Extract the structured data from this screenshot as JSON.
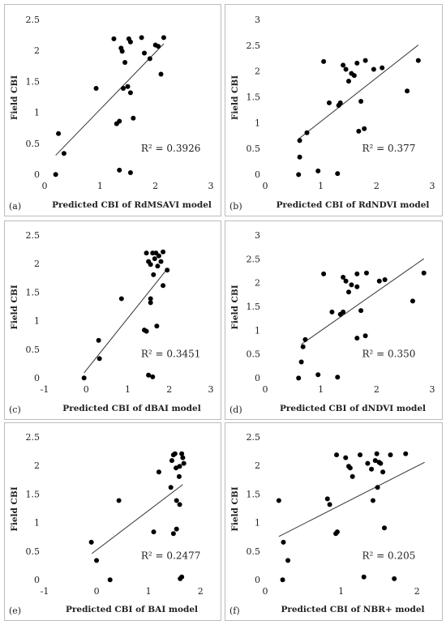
{
  "chart_data": [
    {
      "type": "scatter",
      "panel_label": "(a)",
      "x_label": "Predicted CBI of RdMSAVI model",
      "y_label": "Field CBI",
      "annotation": "R² = 0.3926",
      "color": "#000000",
      "x": [
        0.2,
        0.25,
        0.35,
        0.93,
        1.25,
        1.3,
        1.35,
        1.35,
        1.38,
        1.42,
        1.4,
        1.45,
        1.5,
        1.55,
        1.52,
        1.55,
        1.55,
        1.6,
        1.75,
        1.8,
        1.9,
        2.0,
        2.05,
        2.1,
        2.15
      ],
      "values": [
        0.01,
        0.67,
        0.35,
        1.4,
        2.2,
        0.83,
        0.08,
        0.87,
        2.05,
        1.4,
        2.0,
        1.82,
        1.43,
        2.15,
        2.2,
        1.33,
        0.04,
        0.92,
        2.22,
        1.97,
        1.88,
        2.1,
        2.08,
        1.63,
        2.22
      ],
      "trendline": {
        "x": [
          0.2,
          2.15
        ],
        "y": [
          0.32,
          2.12
        ]
      },
      "xlim": [
        0,
        3
      ],
      "ylim": [
        0,
        2.5
      ],
      "xticks": [
        0,
        1,
        2,
        3
      ],
      "yticks": [
        0,
        0.5,
        1,
        1.5,
        2,
        2.5
      ]
    },
    {
      "type": "scatter",
      "panel_label": "(b)",
      "x_label": "Predicted CBI of RdNDVI model",
      "y_label": "Field CBI",
      "annotation": "R² = 0.377",
      "color": "#000000",
      "x": [
        0.6,
        0.62,
        0.62,
        0.75,
        0.95,
        1.05,
        1.15,
        1.3,
        1.32,
        1.35,
        1.4,
        1.45,
        1.5,
        1.55,
        1.6,
        1.65,
        1.68,
        1.72,
        1.78,
        1.8,
        1.95,
        2.1,
        2.55,
        2.75
      ],
      "values": [
        0.01,
        0.35,
        0.67,
        0.82,
        0.08,
        2.2,
        1.4,
        0.03,
        1.35,
        1.4,
        2.13,
        2.05,
        1.82,
        1.97,
        1.93,
        2.17,
        0.85,
        1.43,
        0.9,
        2.22,
        2.05,
        2.08,
        1.63,
        2.22
      ],
      "trendline": {
        "x": [
          0.6,
          2.75
        ],
        "y": [
          0.7,
          2.52
        ]
      },
      "xlim": [
        0,
        3
      ],
      "ylim": [
        0,
        3
      ],
      "xticks": [
        0,
        1,
        2,
        3
      ],
      "yticks": [
        0,
        0.5,
        1,
        1.5,
        2,
        2.5,
        3
      ]
    },
    {
      "type": "scatter",
      "panel_label": "(c)",
      "x_label": "Predicted CBI of dBAI model",
      "y_label": "Field CBI",
      "annotation": "R² = 0.3451",
      "color": "#000000",
      "x": [
        -0.05,
        0.3,
        0.32,
        0.85,
        1.4,
        1.45,
        1.45,
        1.5,
        1.5,
        1.55,
        1.55,
        1.55,
        1.6,
        1.6,
        1.62,
        1.65,
        1.68,
        1.7,
        1.72,
        1.75,
        1.8,
        1.85,
        1.85,
        1.95
      ],
      "values": [
        0.01,
        0.67,
        0.35,
        1.4,
        0.85,
        0.83,
        2.2,
        0.06,
        2.05,
        2.0,
        1.4,
        1.33,
        2.2,
        0.03,
        1.82,
        2.1,
        2.2,
        0.92,
        1.97,
        2.15,
        2.05,
        2.22,
        1.63,
        1.9
      ],
      "trendline": {
        "x": [
          -0.05,
          1.95
        ],
        "y": [
          0.1,
          1.92
        ]
      },
      "xlim": [
        -1,
        3
      ],
      "ylim": [
        0,
        2.5
      ],
      "xticks": [
        -1,
        0,
        1,
        2,
        3
      ],
      "yticks": [
        0,
        0.5,
        1,
        1.5,
        2,
        2.5
      ]
    },
    {
      "type": "scatter",
      "panel_label": "(d)",
      "x_label": "Predicted CBI of dNDVI model",
      "y_label": "Field CBI",
      "annotation": "R² = 0.350",
      "color": "#000000",
      "x": [
        0.6,
        0.65,
        0.68,
        0.72,
        0.95,
        1.05,
        1.2,
        1.3,
        1.35,
        1.4,
        1.4,
        1.45,
        1.5,
        1.55,
        1.65,
        1.65,
        1.65,
        1.72,
        1.8,
        1.82,
        2.05,
        2.15,
        2.65,
        2.85
      ],
      "values": [
        0.01,
        0.35,
        0.67,
        0.82,
        0.08,
        2.2,
        1.4,
        0.03,
        1.35,
        2.13,
        1.4,
        2.05,
        1.82,
        1.97,
        1.93,
        2.2,
        0.85,
        1.43,
        0.9,
        2.22,
        2.05,
        2.08,
        1.63,
        2.22
      ],
      "trendline": {
        "x": [
          0.65,
          2.85
        ],
        "y": [
          0.72,
          2.52
        ]
      },
      "xlim": [
        0,
        3
      ],
      "ylim": [
        0,
        3
      ],
      "xticks": [
        0,
        1,
        2,
        3
      ],
      "yticks": [
        0,
        0.5,
        1,
        1.5,
        2,
        2.5,
        3
      ]
    },
    {
      "type": "scatter",
      "panel_label": "(e)",
      "x_label": "Predicted CBI of BAI model",
      "y_label": "Field CBI",
      "annotation": "R² = 0.2477",
      "color": "#000000",
      "x": [
        -0.1,
        0.0,
        0.26,
        0.43,
        1.1,
        1.2,
        1.43,
        1.45,
        1.48,
        1.48,
        1.51,
        1.53,
        1.54,
        1.54,
        1.59,
        1.6,
        1.6,
        1.61,
        1.64,
        1.64,
        1.66,
        1.68
      ],
      "values": [
        0.67,
        0.35,
        0.01,
        1.4,
        0.85,
        1.9,
        1.63,
        2.1,
        2.2,
        0.82,
        2.22,
        1.97,
        1.4,
        0.9,
        1.82,
        2.0,
        1.33,
        0.03,
        0.06,
        2.22,
        2.15,
        2.05
      ],
      "trendline": {
        "x": [
          -0.09,
          1.66
        ],
        "y": [
          0.47,
          1.68
        ]
      },
      "xlim": [
        -1,
        2.2
      ],
      "ylim": [
        0,
        2.5
      ],
      "xticks": [
        -1,
        0,
        1,
        2
      ],
      "yticks": [
        0,
        0.5,
        1,
        1.5,
        2,
        2.5
      ]
    },
    {
      "type": "scatter",
      "panel_label": "(f)",
      "x_label": "Predicted CBI of NBR+ model",
      "y_label": "Field CBI",
      "annotation": "R² = 0.205",
      "color": "#000000",
      "x": [
        0.18,
        0.24,
        0.23,
        0.3,
        0.82,
        0.85,
        0.93,
        0.95,
        0.94,
        1.06,
        1.1,
        1.12,
        1.15,
        1.25,
        1.3,
        1.35,
        1.4,
        1.42,
        1.45,
        1.47,
        1.48,
        1.5,
        1.52,
        1.55,
        1.57,
        1.65,
        1.7,
        1.85
      ],
      "values": [
        1.4,
        0.67,
        0.01,
        0.35,
        1.43,
        1.33,
        0.82,
        0.85,
        2.2,
        2.15,
        2.0,
        1.97,
        1.82,
        2.2,
        0.06,
        2.05,
        1.95,
        1.4,
        2.1,
        2.22,
        1.63,
        2.07,
        2.05,
        1.9,
        0.92,
        2.2,
        0.03,
        2.22
      ],
      "trendline": {
        "x": [
          0.18,
          2.1
        ],
        "y": [
          0.77,
          2.07
        ]
      },
      "xlim": [
        0,
        2.2
      ],
      "ylim": [
        0,
        2.5
      ],
      "xticks": [
        0,
        1,
        2
      ],
      "yticks": [
        0,
        0.5,
        1,
        1.5,
        2,
        2.5
      ]
    }
  ]
}
